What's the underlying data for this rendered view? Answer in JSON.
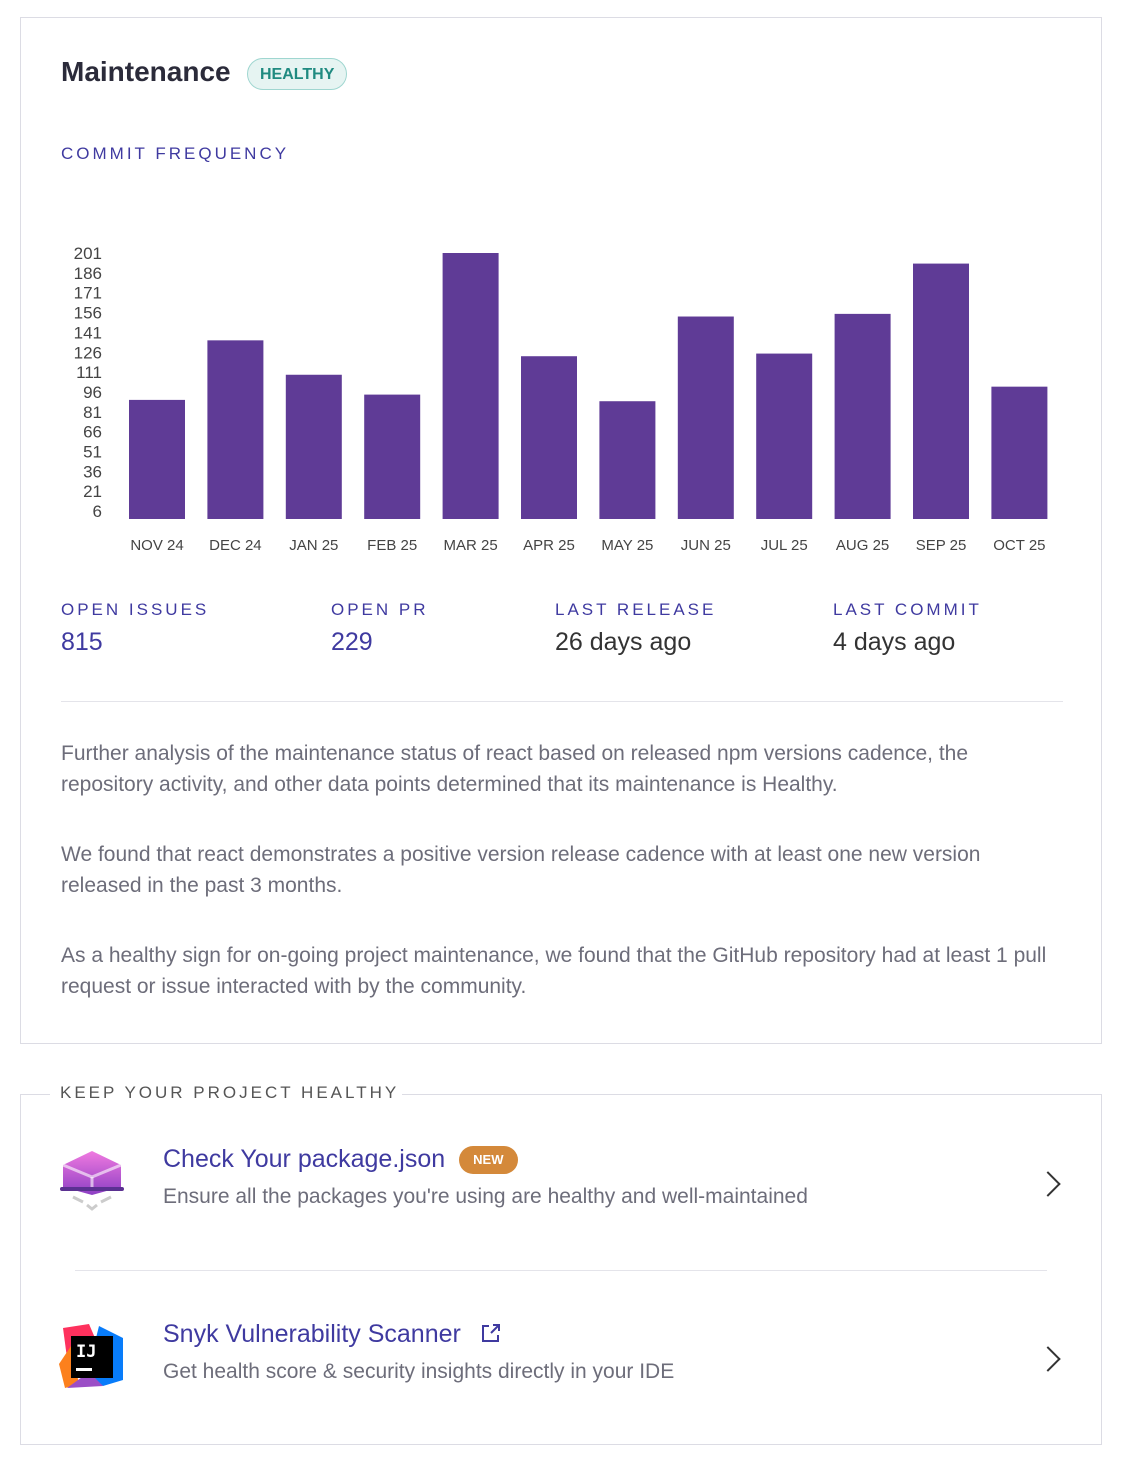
{
  "header": {
    "title": "Maintenance",
    "status_badge": "HEALTHY"
  },
  "commit_frequency_label": "COMMIT FREQUENCY",
  "chart_data": {
    "type": "bar",
    "title": "Commit Frequency",
    "categories": [
      "NOV 24",
      "DEC 24",
      "JAN 25",
      "FEB 25",
      "MAR 25",
      "APR 25",
      "MAY 25",
      "JUN 25",
      "JUL 25",
      "AUG 25",
      "SEP 25",
      "OCT 25"
    ],
    "values": [
      90,
      135,
      109,
      94,
      201,
      123,
      89,
      153,
      125,
      155,
      193,
      100
    ],
    "yticks": [
      201,
      186,
      171,
      156,
      141,
      126,
      111,
      96,
      81,
      66,
      51,
      36,
      21,
      6
    ],
    "ylim": [
      0,
      201
    ],
    "xlabel": "",
    "ylabel": "",
    "color": "#5f3b96"
  },
  "stats": [
    {
      "label": "OPEN ISSUES",
      "value": "815"
    },
    {
      "label": "OPEN PR",
      "value": "229"
    },
    {
      "label": "LAST RELEASE",
      "value": "26 days ago"
    },
    {
      "label": "LAST COMMIT",
      "value": "4 days ago"
    }
  ],
  "paragraphs": [
    "Further analysis of the maintenance status of react based on released npm versions cadence, the repository activity, and other data points determined that its maintenance is Healthy.",
    "We found that react demonstrates a positive version release cadence with at least one new version released in the past 3 months.",
    "As a healthy sign for on-going project maintenance, we found that the GitHub repository had at least 1 pull request or issue interacted with by the community."
  ],
  "keep_healthy": {
    "title": "KEEP YOUR PROJECT HEALTHY",
    "items": [
      {
        "title": "Check Your package.json",
        "badge": "NEW",
        "subtitle": "Ensure all the packages you're using are healthy and well-maintained"
      },
      {
        "title": "Snyk Vulnerability Scanner",
        "subtitle": "Get health score & security insights directly in your IDE",
        "ide_logo_text": "IJ"
      }
    ]
  }
}
